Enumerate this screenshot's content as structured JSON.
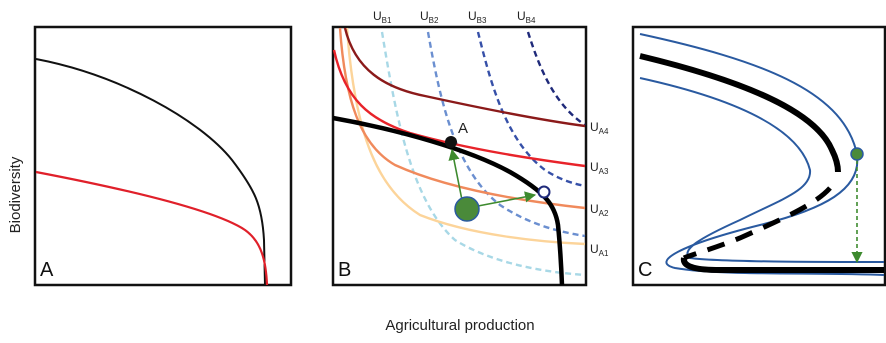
{
  "figure": {
    "ylabel": "Biodiversity",
    "xlabel": "Agricultural production"
  },
  "panels": [
    {
      "label": "A"
    },
    {
      "label": "B"
    },
    {
      "label": "C"
    }
  ],
  "panel_b": {
    "point_label": "A",
    "ub": [
      {
        "main": "U",
        "sub": "B1"
      },
      {
        "main": "U",
        "sub": "B2"
      },
      {
        "main": "U",
        "sub": "B3"
      },
      {
        "main": "U",
        "sub": "B4"
      }
    ],
    "ua": [
      {
        "main": "U",
        "sub": "A4"
      },
      {
        "main": "U",
        "sub": "A3"
      },
      {
        "main": "U",
        "sub": "A2"
      },
      {
        "main": "U",
        "sub": "A1"
      }
    ]
  },
  "colors": {
    "frontier": "#000000",
    "panel_a_red": "#e0202a",
    "ua4": "#8b1a1a",
    "ua3": "#e8232a",
    "ua2": "#f08a5c",
    "ua1": "#fcd49a",
    "ub1": "#a8d8e6",
    "ub2": "#6b8fd0",
    "ub3": "#3650a8",
    "ub4": "#1f2a7a",
    "arrow_green": "#3d8a2e",
    "dot_green": "#4a8a3a",
    "hysteresis_blue": "#2a5aa0"
  }
}
